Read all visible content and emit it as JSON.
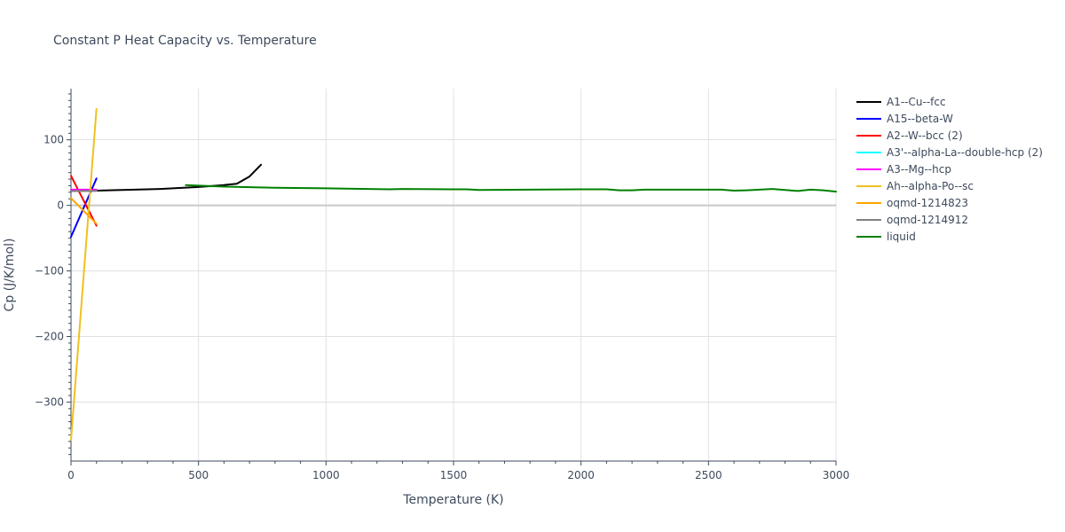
{
  "chart_data": {
    "type": "line",
    "title": "Constant P Heat Capacity vs. Temperature",
    "xlabel": "Temperature (K)",
    "ylabel": "Cp (J/K/mol)",
    "xlim": [
      0,
      3000
    ],
    "ylim": [
      -390,
      178
    ],
    "xticks": [
      0,
      500,
      1000,
      1500,
      2000,
      2500,
      3000
    ],
    "xtick_labels": [
      "0",
      "500",
      "1000",
      "1500",
      "2000",
      "2500",
      "3000"
    ],
    "yticks": [
      100,
      0,
      -100,
      -200,
      -300
    ],
    "ytick_labels": [
      "100",
      "0",
      "−100",
      "−200",
      "−300"
    ],
    "grid": true,
    "legend_position": "right",
    "series": [
      {
        "name": "A1--Cu--fcc",
        "color": "#000000",
        "x": [
          0,
          100,
          200,
          300,
          350,
          400,
          500,
          600,
          650,
          700,
          745
        ],
        "y": [
          22,
          22.5,
          23.5,
          24.5,
          25,
          26,
          28,
          31,
          33,
          44,
          62
        ]
      },
      {
        "name": "A15--beta-W",
        "color": "#0000ff",
        "x": [
          0,
          100
        ],
        "y": [
          -48,
          41
        ]
      },
      {
        "name": "A2--W--bcc (2)",
        "color": "#ff0000",
        "x": [
          0,
          100
        ],
        "y": [
          45,
          -31
        ]
      },
      {
        "name": "A3'--alpha-La--double-hcp (2)",
        "color": "#00ffff",
        "x": [
          0,
          100
        ],
        "y": [
          23,
          23
        ]
      },
      {
        "name": "A3--Mg--hcp",
        "color": "#ff00ff",
        "x": [
          0,
          100
        ],
        "y": [
          24,
          24
        ]
      },
      {
        "name": "Ah--alpha-Po--sc",
        "color": "#f0c020",
        "x": [
          0,
          100
        ],
        "y": [
          -358,
          147
        ]
      },
      {
        "name": "oqmd-1214823",
        "color": "#ffa500",
        "x": [
          0,
          100
        ],
        "y": [
          11,
          -28
        ]
      },
      {
        "name": "oqmd-1214912",
        "color": "#808080",
        "x": [
          0,
          100
        ],
        "y": [
          22,
          22
        ]
      },
      {
        "name": "liquid",
        "color": "#008000",
        "x": [
          450,
          600,
          800,
          1000,
          1250,
          1300,
          1500,
          1550,
          1600,
          1800,
          2000,
          2100,
          2150,
          2200,
          2250,
          2500,
          2550,
          2600,
          2650,
          2700,
          2750,
          2800,
          2850,
          2900,
          2950,
          3000
        ],
        "y": [
          31,
          28.5,
          27,
          26,
          24.5,
          25,
          24.5,
          24.5,
          23.5,
          24,
          24.5,
          24.5,
          23,
          23,
          24,
          24,
          24,
          22.5,
          23,
          24,
          25,
          23.5,
          22,
          24,
          23,
          21
        ]
      }
    ]
  }
}
